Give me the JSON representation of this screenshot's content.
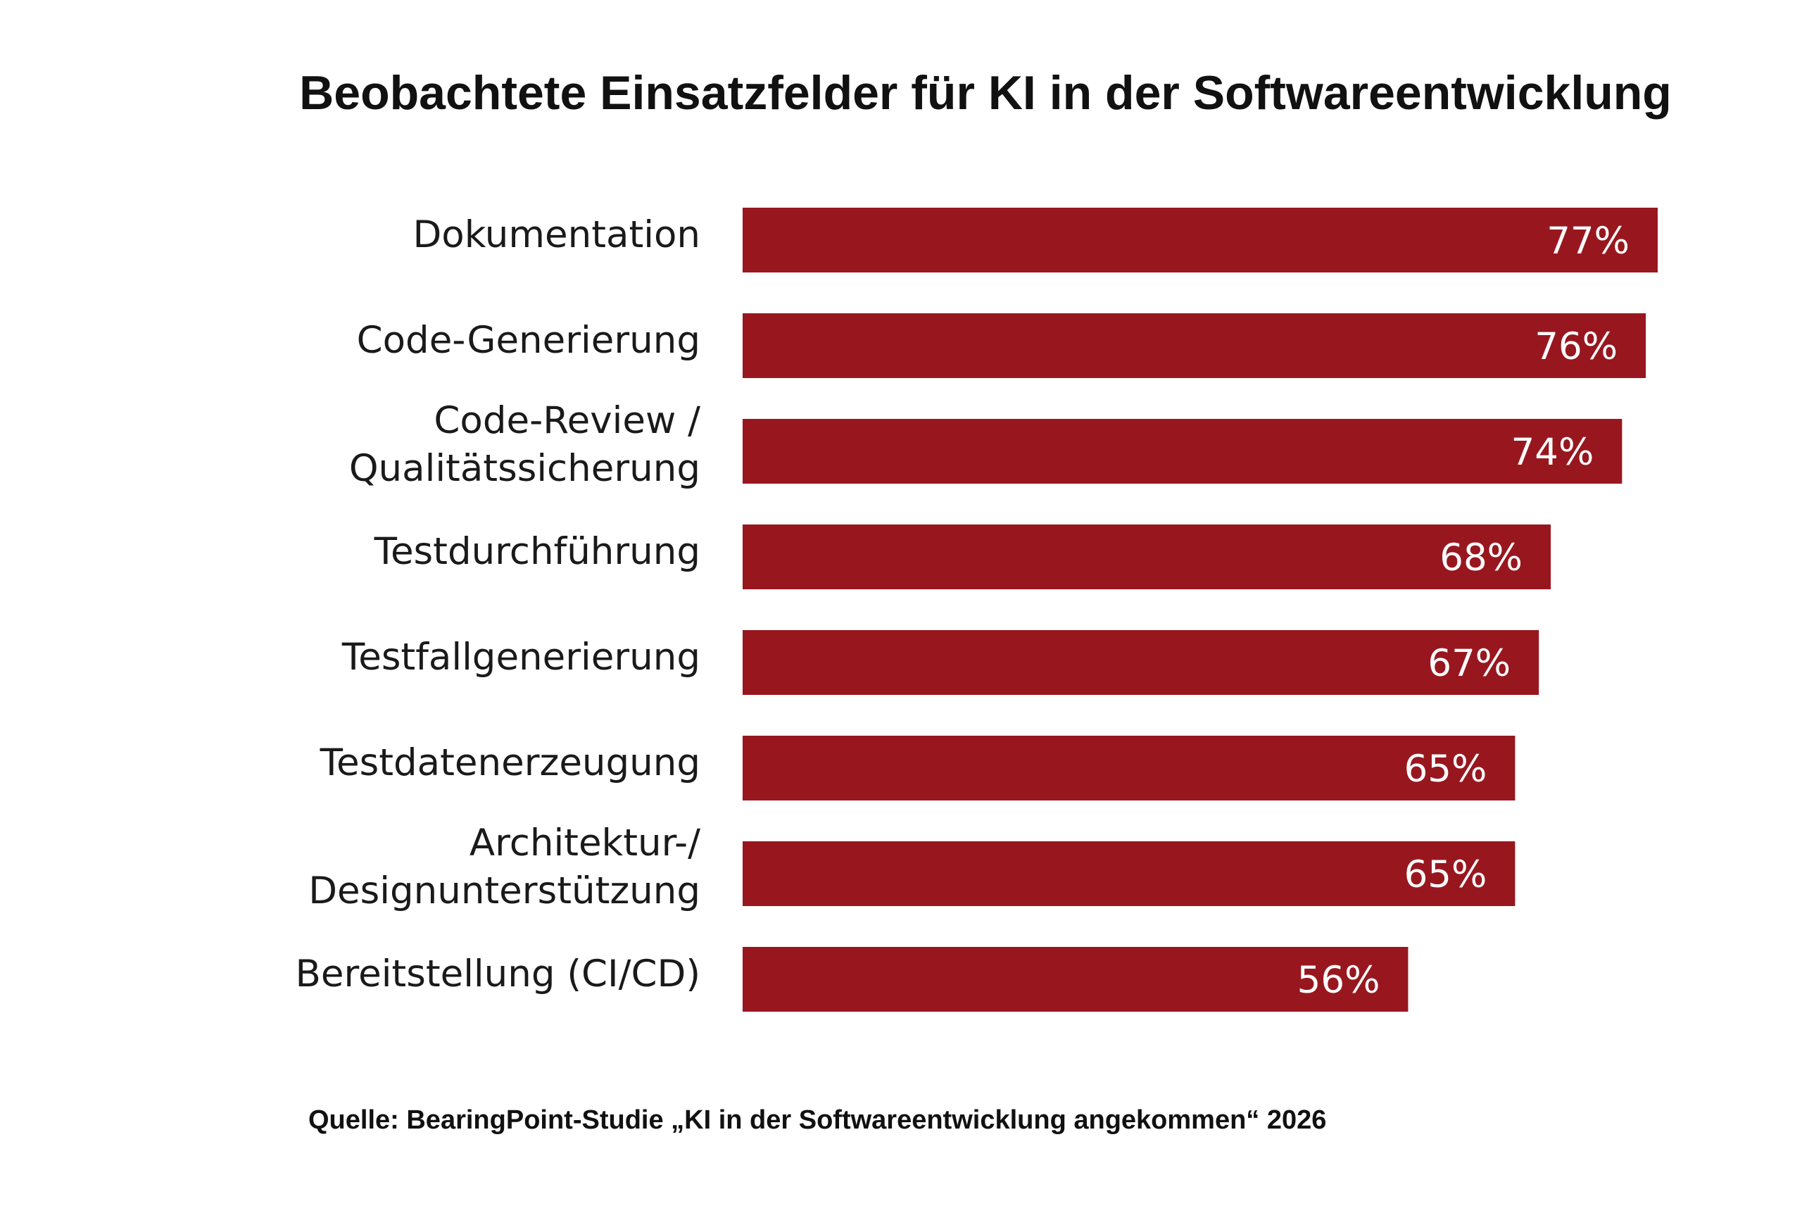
{
  "chart_data": {
    "type": "bar",
    "orientation": "horizontal",
    "title": "Beobachtete Einsatzfelder für KI in der Softwareentwicklung",
    "categories": [
      [
        "Dokumentation"
      ],
      [
        "Code-Generierung"
      ],
      [
        "Code-Review /",
        "Qualitätssicherung"
      ],
      [
        "Testdurchführung"
      ],
      [
        "Testfallgenerierung"
      ],
      [
        "Testdatenerzeugung"
      ],
      [
        "Architektur-/",
        "Designunterstützung"
      ],
      [
        "Bereitstellung (CI/CD)"
      ]
    ],
    "values": [
      77,
      76,
      74,
      68,
      67,
      65,
      65,
      56
    ],
    "value_labels": [
      "77%",
      "76%",
      "74%",
      "68%",
      "67%",
      "65%",
      "65%",
      "56%"
    ],
    "unit": "%",
    "xlim": [
      0,
      100
    ],
    "grid": false,
    "legend": "none",
    "bar_color": "#98171f",
    "value_label_color": "#ffffff"
  },
  "source": "Quelle: BearingPoint-Studie „KI in der Softwareentwicklung angekommen“ 2026"
}
